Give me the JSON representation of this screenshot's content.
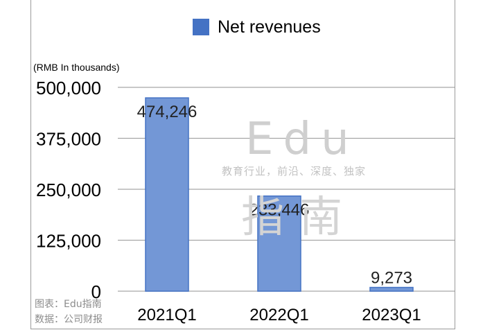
{
  "chart_data": {
    "type": "bar",
    "categories": [
      "2021Q1",
      "2022Q1",
      "2023Q1"
    ],
    "series": [
      {
        "name": "Net revenues",
        "values": [
          474246,
          233446,
          9273
        ],
        "color": "#4472c4"
      }
    ],
    "value_labels": [
      "474,246",
      "233,446",
      "9,273"
    ],
    "ylabel": "(RMB In thousands)",
    "ylim": [
      0,
      500000
    ],
    "yticks": [
      0,
      125000,
      250000,
      375000,
      500000
    ],
    "ytick_labels": [
      "0",
      "125,000",
      "250,000",
      "375,000",
      "500,000"
    ],
    "grid": true,
    "legend_position": "top-center"
  },
  "watermark": {
    "brand": "Edu",
    "slogan": "教育行业，前沿、深度、独家",
    "cn": "指南"
  },
  "source": {
    "chart_credit": "图表：Edu指南",
    "data_credit": "数据：公司财报"
  }
}
